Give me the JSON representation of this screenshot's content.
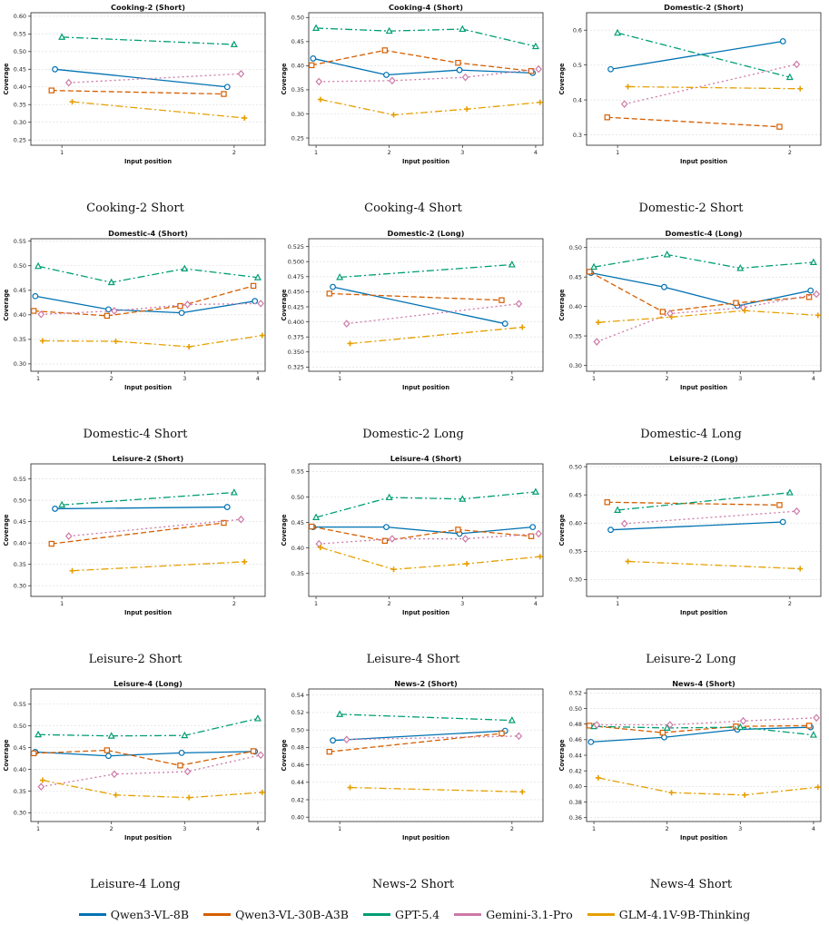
{
  "legend": [
    {
      "name": "Qwen3-VL-8B",
      "color": "#0072B2"
    },
    {
      "name": "Qwen3-VL-30B-A3B",
      "color": "#D55E00"
    },
    {
      "name": "GPT-5.4",
      "color": "#009E73"
    },
    {
      "name": "Gemini-3.1-Pro",
      "color": "#CC79A7"
    },
    {
      "name": "GLM-4.1V-9B-Thinking",
      "color": "#E69F00"
    }
  ],
  "chart_data": [
    {
      "type": "line",
      "title": "Cooking-2 (Short)",
      "caption": "Cooking-2 Short",
      "xlabel": "Input position",
      "ylabel": "Coverage",
      "x": [
        1,
        2
      ],
      "ylim": [
        0.235,
        0.61
      ],
      "yticks": [
        0.25,
        0.3,
        0.35,
        0.4,
        0.45,
        0.5,
        0.55,
        0.6
      ],
      "series": [
        {
          "name": "Qwen3-VL-8B",
          "values": [
            0.45,
            0.4
          ]
        },
        {
          "name": "Qwen3-VL-30B-A3B",
          "values": [
            0.39,
            0.38
          ]
        },
        {
          "name": "GPT-5.4",
          "values": [
            0.541,
            0.52
          ]
        },
        {
          "name": "Gemini-3.1-Pro",
          "values": [
            0.412,
            0.437
          ]
        },
        {
          "name": "GLM-4.1V-9B-Thinking",
          "values": [
            0.358,
            0.312
          ]
        }
      ]
    },
    {
      "type": "line",
      "title": "Cooking-4 (Short)",
      "caption": "Cooking-4 Short",
      "xlabel": "Input position",
      "ylabel": "Coverage",
      "x": [
        1,
        2,
        3,
        4
      ],
      "ylim": [
        0.235,
        0.51
      ],
      "yticks": [
        0.25,
        0.3,
        0.35,
        0.4,
        0.45,
        0.5
      ],
      "series": [
        {
          "name": "Qwen3-VL-8B",
          "values": [
            0.415,
            0.381,
            0.391,
            0.385
          ]
        },
        {
          "name": "Qwen3-VL-30B-A3B",
          "values": [
            0.401,
            0.432,
            0.406,
            0.389
          ]
        },
        {
          "name": "GPT-5.4",
          "values": [
            0.478,
            0.472,
            0.476,
            0.44
          ]
        },
        {
          "name": "Gemini-3.1-Pro",
          "values": [
            0.367,
            0.369,
            0.376,
            0.393
          ]
        },
        {
          "name": "GLM-4.1V-9B-Thinking",
          "values": [
            0.33,
            0.298,
            0.31,
            0.324
          ]
        }
      ]
    },
    {
      "type": "line",
      "title": "Domestic-2 (Short)",
      "caption": "Domestic-2 Short",
      "xlabel": "Input position",
      "ylabel": "Coverage",
      "x": [
        1,
        2
      ],
      "ylim": [
        0.27,
        0.65
      ],
      "yticks": [
        0.3,
        0.4,
        0.5,
        0.6
      ],
      "series": [
        {
          "name": "Qwen3-VL-8B",
          "values": [
            0.488,
            0.568
          ]
        },
        {
          "name": "Qwen3-VL-30B-A3B",
          "values": [
            0.35,
            0.323
          ]
        },
        {
          "name": "GPT-5.4",
          "values": [
            0.592,
            0.465
          ]
        },
        {
          "name": "Gemini-3.1-Pro",
          "values": [
            0.388,
            0.502
          ]
        },
        {
          "name": "GLM-4.1V-9B-Thinking",
          "values": [
            0.438,
            0.432
          ]
        }
      ]
    },
    {
      "type": "line",
      "title": "Domestic-4 (Short)",
      "caption": "Domestic-4 Short",
      "xlabel": "Input position",
      "ylabel": "Coverage",
      "x": [
        1,
        2,
        3,
        4
      ],
      "ylim": [
        0.285,
        0.555
      ],
      "yticks": [
        0.3,
        0.35,
        0.4,
        0.45,
        0.5,
        0.55
      ],
      "series": [
        {
          "name": "Qwen3-VL-8B",
          "values": [
            0.438,
            0.411,
            0.404,
            0.428
          ]
        },
        {
          "name": "Qwen3-VL-30B-A3B",
          "values": [
            0.408,
            0.398,
            0.418,
            0.459
          ]
        },
        {
          "name": "GPT-5.4",
          "values": [
            0.499,
            0.466,
            0.494,
            0.476
          ]
        },
        {
          "name": "Gemini-3.1-Pro",
          "values": [
            0.401,
            0.408,
            0.421,
            0.423
          ]
        },
        {
          "name": "GLM-4.1V-9B-Thinking",
          "values": [
            0.347,
            0.346,
            0.335,
            0.358
          ]
        }
      ]
    },
    {
      "type": "line",
      "title": "Domestic-2 (Long)",
      "caption": "Domestic-2 Long",
      "xlabel": "Input position",
      "ylabel": "Coverage",
      "x": [
        1,
        2
      ],
      "ylim": [
        0.318,
        0.538
      ],
      "yticks": [
        0.325,
        0.35,
        0.375,
        0.4,
        0.425,
        0.45,
        0.475,
        0.5,
        0.525
      ],
      "series": [
        {
          "name": "Qwen3-VL-8B",
          "values": [
            0.458,
            0.397
          ]
        },
        {
          "name": "Qwen3-VL-30B-A3B",
          "values": [
            0.447,
            0.436
          ]
        },
        {
          "name": "GPT-5.4",
          "values": [
            0.474,
            0.495
          ]
        },
        {
          "name": "Gemini-3.1-Pro",
          "values": [
            0.397,
            0.43
          ]
        },
        {
          "name": "GLM-4.1V-9B-Thinking",
          "values": [
            0.364,
            0.391
          ]
        }
      ]
    },
    {
      "type": "line",
      "title": "Domestic-4 (Long)",
      "caption": "Domestic-4 Long",
      "xlabel": "Input position",
      "ylabel": "Coverage",
      "x": [
        1,
        2,
        3,
        4
      ],
      "ylim": [
        0.29,
        0.515
      ],
      "yticks": [
        0.3,
        0.35,
        0.4,
        0.45,
        0.5
      ],
      "series": [
        {
          "name": "Qwen3-VL-8B",
          "values": [
            0.457,
            0.433,
            0.401,
            0.427
          ]
        },
        {
          "name": "Qwen3-VL-30B-A3B",
          "values": [
            0.459,
            0.391,
            0.406,
            0.416
          ]
        },
        {
          "name": "GPT-5.4",
          "values": [
            0.467,
            0.488,
            0.465,
            0.475
          ]
        },
        {
          "name": "Gemini-3.1-Pro",
          "values": [
            0.34,
            0.388,
            0.398,
            0.421
          ]
        },
        {
          "name": "GLM-4.1V-9B-Thinking",
          "values": [
            0.373,
            0.382,
            0.393,
            0.385
          ]
        }
      ]
    },
    {
      "type": "line",
      "title": "Leisure-2 (Short)",
      "caption": "Leisure-2 Short",
      "xlabel": "Input position",
      "ylabel": "Coverage",
      "x": [
        1,
        2
      ],
      "ylim": [
        0.275,
        0.585
      ],
      "yticks": [
        0.3,
        0.35,
        0.4,
        0.45,
        0.5,
        0.55
      ],
      "series": [
        {
          "name": "Qwen3-VL-8B",
          "values": [
            0.48,
            0.484
          ]
        },
        {
          "name": "Qwen3-VL-30B-A3B",
          "values": [
            0.398,
            0.447
          ]
        },
        {
          "name": "GPT-5.4",
          "values": [
            0.489,
            0.518
          ]
        },
        {
          "name": "Gemini-3.1-Pro",
          "values": [
            0.416,
            0.455
          ]
        },
        {
          "name": "GLM-4.1V-9B-Thinking",
          "values": [
            0.335,
            0.356
          ]
        }
      ]
    },
    {
      "type": "line",
      "title": "Leisure-4 (Short)",
      "caption": "Leisure-4 Short",
      "xlabel": "Input position",
      "ylabel": "Coverage",
      "x": [
        1,
        2,
        3,
        4
      ],
      "ylim": [
        0.305,
        0.565
      ],
      "yticks": [
        0.35,
        0.4,
        0.45,
        0.5,
        0.55
      ],
      "series": [
        {
          "name": "Qwen3-VL-8B",
          "values": [
            0.441,
            0.441,
            0.428,
            0.441
          ]
        },
        {
          "name": "Qwen3-VL-30B-A3B",
          "values": [
            0.442,
            0.414,
            0.436,
            0.423
          ]
        },
        {
          "name": "GPT-5.4",
          "values": [
            0.46,
            0.499,
            0.496,
            0.51
          ]
        },
        {
          "name": "Gemini-3.1-Pro",
          "values": [
            0.408,
            0.418,
            0.418,
            0.428
          ]
        },
        {
          "name": "GLM-4.1V-9B-Thinking",
          "values": [
            0.401,
            0.358,
            0.369,
            0.383
          ]
        }
      ]
    },
    {
      "type": "line",
      "title": "Leisure-2 (Long)",
      "caption": "Leisure-2 Long",
      "xlabel": "Input position",
      "ylabel": "Coverage",
      "x": [
        1,
        2
      ],
      "ylim": [
        0.27,
        0.505
      ],
      "yticks": [
        0.3,
        0.35,
        0.4,
        0.45,
        0.5
      ],
      "series": [
        {
          "name": "Qwen3-VL-8B",
          "values": [
            0.388,
            0.402
          ]
        },
        {
          "name": "Qwen3-VL-30B-A3B",
          "values": [
            0.437,
            0.432
          ]
        },
        {
          "name": "GPT-5.4",
          "values": [
            0.423,
            0.454
          ]
        },
        {
          "name": "Gemini-3.1-Pro",
          "values": [
            0.399,
            0.421
          ]
        },
        {
          "name": "GLM-4.1V-9B-Thinking",
          "values": [
            0.332,
            0.319
          ]
        }
      ]
    },
    {
      "type": "line",
      "title": "Leisure-4 (Long)",
      "caption": "Leisure-4 Long",
      "xlabel": "Input position",
      "ylabel": "Coverage",
      "x": [
        1,
        2,
        3,
        4
      ],
      "ylim": [
        0.28,
        0.585
      ],
      "yticks": [
        0.3,
        0.35,
        0.4,
        0.45,
        0.5,
        0.55
      ],
      "series": [
        {
          "name": "Qwen3-VL-8B",
          "values": [
            0.44,
            0.431,
            0.438,
            0.441
          ]
        },
        {
          "name": "Qwen3-VL-30B-A3B",
          "values": [
            0.437,
            0.444,
            0.409,
            0.442
          ]
        },
        {
          "name": "GPT-5.4",
          "values": [
            0.48,
            0.477,
            0.478,
            0.517
          ]
        },
        {
          "name": "Gemini-3.1-Pro",
          "values": [
            0.36,
            0.389,
            0.395,
            0.433
          ]
        },
        {
          "name": "GLM-4.1V-9B-Thinking",
          "values": [
            0.375,
            0.341,
            0.335,
            0.347
          ]
        }
      ]
    },
    {
      "type": "line",
      "title": "News-2 (Short)",
      "caption": "News-2 Short",
      "xlabel": "Input position",
      "ylabel": "Coverage",
      "x": [
        1,
        2
      ],
      "ylim": [
        0.395,
        0.547
      ],
      "yticks": [
        0.4,
        0.42,
        0.44,
        0.46,
        0.48,
        0.5,
        0.52,
        0.54
      ],
      "series": [
        {
          "name": "Qwen3-VL-8B",
          "values": [
            0.488,
            0.499
          ]
        },
        {
          "name": "Qwen3-VL-30B-A3B",
          "values": [
            0.475,
            0.496
          ]
        },
        {
          "name": "GPT-5.4",
          "values": [
            0.518,
            0.511
          ]
        },
        {
          "name": "Gemini-3.1-Pro",
          "values": [
            0.489,
            0.493
          ]
        },
        {
          "name": "GLM-4.1V-9B-Thinking",
          "values": [
            0.434,
            0.429
          ]
        }
      ]
    },
    {
      "type": "line",
      "title": "News-4 (Short)",
      "caption": "News-4 Short",
      "xlabel": "Input position",
      "ylabel": "Coverage",
      "x": [
        1,
        2,
        3,
        4
      ],
      "ylim": [
        0.355,
        0.525
      ],
      "yticks": [
        0.36,
        0.38,
        0.4,
        0.42,
        0.44,
        0.46,
        0.48,
        0.5,
        0.52
      ],
      "series": [
        {
          "name": "Qwen3-VL-8B",
          "values": [
            0.457,
            0.463,
            0.473,
            0.476
          ]
        },
        {
          "name": "Qwen3-VL-30B-A3B",
          "values": [
            0.478,
            0.469,
            0.477,
            0.478
          ]
        },
        {
          "name": "GPT-5.4",
          "values": [
            0.477,
            0.475,
            0.476,
            0.466
          ]
        },
        {
          "name": "Gemini-3.1-Pro",
          "values": [
            0.479,
            0.479,
            0.484,
            0.488
          ]
        },
        {
          "name": "GLM-4.1V-9B-Thinking",
          "values": [
            0.411,
            0.392,
            0.389,
            0.399
          ]
        }
      ]
    }
  ]
}
